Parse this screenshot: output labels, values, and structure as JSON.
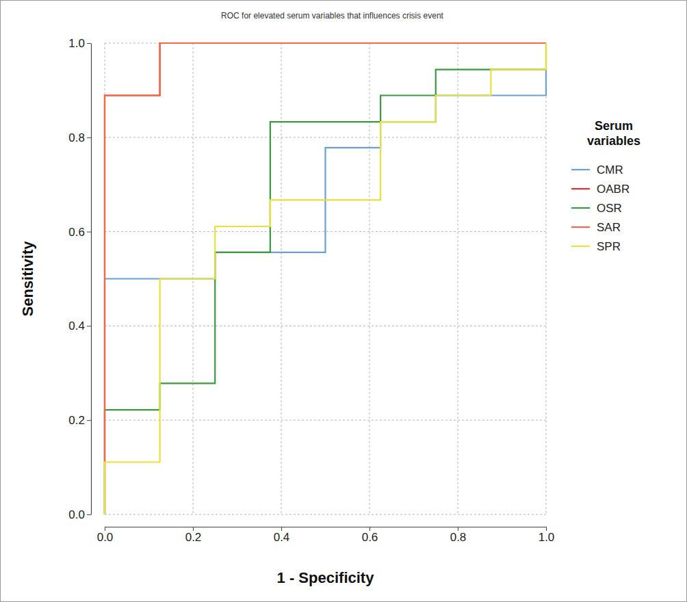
{
  "chart_data": {
    "type": "line",
    "title": "ROC for elevated serum variables that influences crisis event",
    "x_label": "1 - Specificity",
    "y_label": "Sensitivity",
    "legend_title": "Serum variables",
    "legend": "right",
    "grid": true,
    "line_style": "step",
    "xlim": [
      0,
      1
    ],
    "ylim": [
      0,
      1
    ],
    "xticks": [
      {
        "value": 0,
        "label": "0.0"
      },
      0.2,
      0.4,
      0.6,
      0.8,
      {
        "value": 1,
        "label": "1.0"
      }
    ],
    "yticks": [
      {
        "value": 0,
        "label": "0.0"
      },
      0.2,
      0.4,
      0.6,
      0.8,
      {
        "value": 1,
        "label": "1.0"
      }
    ],
    "series": [
      {
        "name": "CMR",
        "color": "#6a9fd8",
        "x": [
          0,
          0,
          0.25,
          0.25,
          0.5,
          0.5,
          0.625,
          0.625,
          0.75,
          0.75,
          1,
          1
        ],
        "values": [
          0,
          0.5,
          0.5,
          0.556,
          0.556,
          0.778,
          0.778,
          0.833,
          0.833,
          0.889,
          0.889,
          0.944
        ]
      },
      {
        "name": "OABR",
        "color": "#e0312c",
        "x": [
          0,
          0,
          0.125,
          0.125,
          1
        ],
        "values": [
          0,
          0.889,
          0.889,
          1,
          1
        ]
      },
      {
        "name": "OSR",
        "color": "#3a9a3e",
        "x": [
          0,
          0,
          0.125,
          0.125,
          0.25,
          0.25,
          0.375,
          0.375,
          0.625,
          0.625,
          0.75,
          0.75,
          1,
          1
        ],
        "values": [
          0,
          0.222,
          0.222,
          0.278,
          0.278,
          0.556,
          0.556,
          0.833,
          0.833,
          0.889,
          0.889,
          0.944,
          0.944,
          1
        ]
      },
      {
        "name": "SAR",
        "color": "#f26a45",
        "x": [
          0,
          0,
          0.125,
          0.125,
          1
        ],
        "values": [
          0,
          0.889,
          0.889,
          1,
          1
        ]
      },
      {
        "name": "SPR",
        "color": "#e6e23a",
        "x": [
          0,
          0,
          0.125,
          0.125,
          0.25,
          0.25,
          0.375,
          0.375,
          0.625,
          0.625,
          0.75,
          0.75,
          0.875,
          0.875,
          1,
          1
        ],
        "values": [
          0,
          0.111,
          0.111,
          0.5,
          0.5,
          0.611,
          0.611,
          0.667,
          0.667,
          0.833,
          0.833,
          0.889,
          0.889,
          0.944,
          0.944,
          1
        ]
      }
    ]
  }
}
